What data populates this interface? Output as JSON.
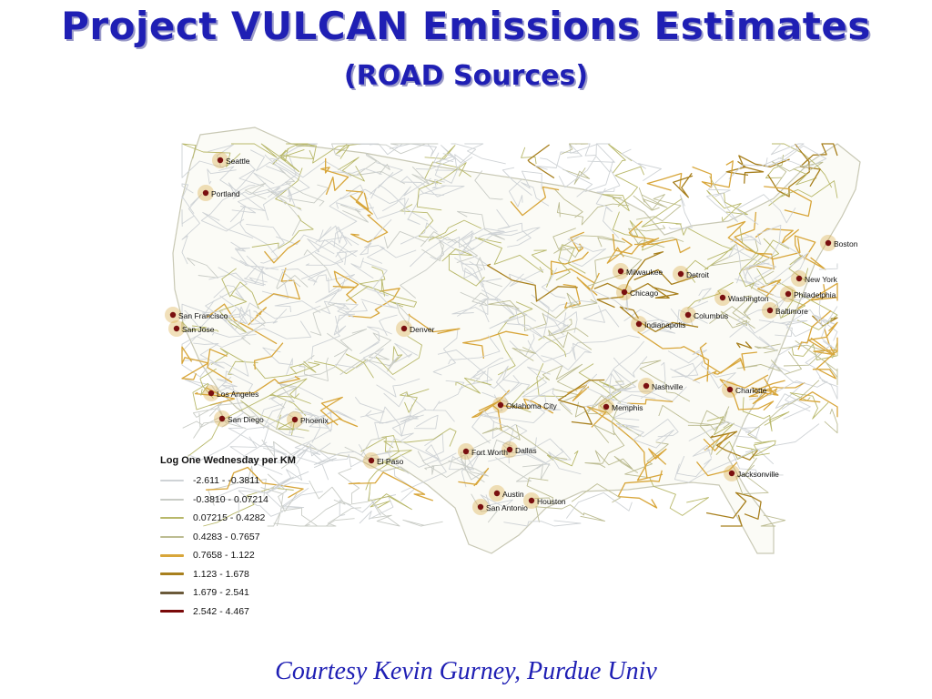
{
  "slide": {
    "title": "Project VULCAN Emissions Estimates",
    "subtitle": "(ROAD Sources)",
    "credit": "Courtesy Kevin Gurney, Purdue Univ"
  },
  "legend": {
    "title": "Log One Wednesday per KM",
    "items": [
      {
        "label": "-2.611 - -0.3811",
        "color": "#cfd3d6"
      },
      {
        "label": "-0.3810 - 0.07214",
        "color": "#c9ccc6"
      },
      {
        "label": "0.07215 - 0.4282",
        "color": "#b8b86a"
      },
      {
        "label": "0.4283 - 0.7657",
        "color": "#bcbc92"
      },
      {
        "label": "0.7658 - 1.122",
        "color": "#d8a63a"
      },
      {
        "label": "1.123 - 1.678",
        "color": "#a8801e"
      },
      {
        "label": "1.679 - 2.541",
        "color": "#6b5a3a"
      },
      {
        "label": "2.542 - 4.467",
        "color": "#7a0a0a"
      }
    ]
  },
  "cities": [
    {
      "name": "Seattle",
      "key": "seattle"
    },
    {
      "name": "Portland",
      "key": "portland"
    },
    {
      "name": "San Francisco",
      "key": "sanfrancisco"
    },
    {
      "name": "San Jose",
      "key": "sanjose"
    },
    {
      "name": "Los Angeles",
      "key": "losangeles"
    },
    {
      "name": "San Diego",
      "key": "sandiego"
    },
    {
      "name": "Phoenix",
      "key": "phoenix"
    },
    {
      "name": "Denver",
      "key": "denver"
    },
    {
      "name": "El Paso",
      "key": "elpaso"
    },
    {
      "name": "Oklahoma City",
      "key": "oklahomacity"
    },
    {
      "name": "Fort Worth",
      "key": "fortworth"
    },
    {
      "name": "Dallas",
      "key": "dallas"
    },
    {
      "name": "Austin",
      "key": "austin"
    },
    {
      "name": "San Antonio",
      "key": "sanantonio"
    },
    {
      "name": "Houston",
      "key": "houston"
    },
    {
      "name": "Memphis",
      "key": "memphis"
    },
    {
      "name": "Nashville",
      "key": "nashville"
    },
    {
      "name": "Milwaukee",
      "key": "milwaukee"
    },
    {
      "name": "Chicago",
      "key": "chicago"
    },
    {
      "name": "Detroit",
      "key": "detroit"
    },
    {
      "name": "Indianapolis",
      "key": "indianapolis"
    },
    {
      "name": "Columbus",
      "key": "columbus"
    },
    {
      "name": "Washington",
      "key": "washington"
    },
    {
      "name": "Baltimore",
      "key": "baltimore"
    },
    {
      "name": "Philadelphia",
      "key": "philadelphia"
    },
    {
      "name": "New York",
      "key": "newyork"
    },
    {
      "name": "Boston",
      "key": "boston"
    },
    {
      "name": "Charlotte",
      "key": "charlotte"
    },
    {
      "name": "Jacksonville",
      "key": "jacksonville"
    }
  ]
}
